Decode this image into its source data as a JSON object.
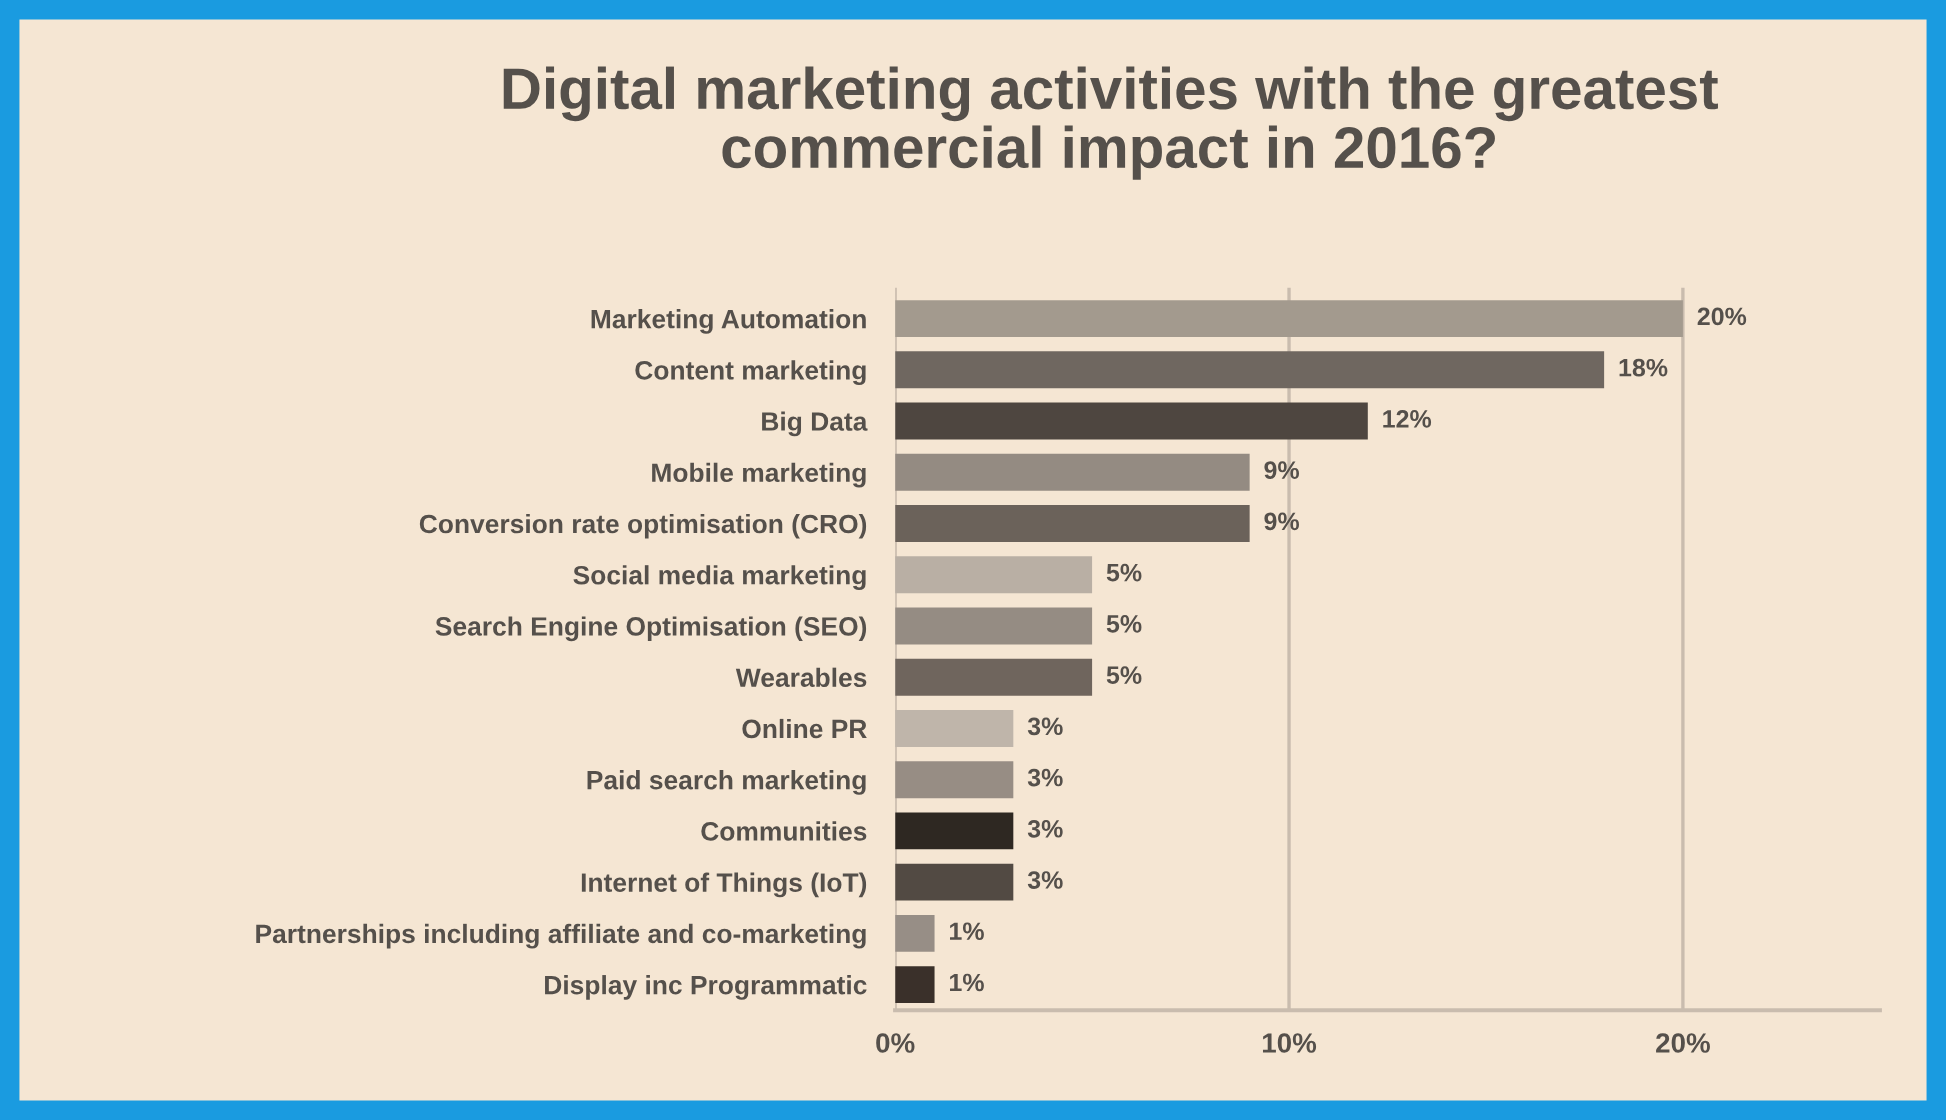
{
  "chart_data": {
    "type": "bar",
    "orientation": "horizontal",
    "title": "Digital marketing activities with the greatest\ncommercial impact in 2016?",
    "categories": [
      "Marketing Automation",
      "Content marketing",
      "Big Data",
      "Mobile marketing",
      "Conversion rate optimisation (CRO)",
      "Social media marketing",
      "Search Engine Optimisation (SEO)",
      "Wearables",
      "Online PR",
      "Paid search marketing",
      "Communities",
      "Internet of Things (IoT)",
      "Partnerships including affiliate and co-marketing",
      "Display inc Programmatic"
    ],
    "values": [
      20,
      18,
      12,
      9,
      9,
      5,
      5,
      5,
      3,
      3,
      3,
      3,
      1,
      1
    ],
    "value_labels": [
      "20%",
      "18%",
      "12%",
      "9%",
      "9%",
      "5%",
      "5%",
      "5%",
      "3%",
      "3%",
      "3%",
      "3%",
      "1%",
      "1%"
    ],
    "colors": [
      "#a39a8e",
      "#6f6760",
      "#4e4640",
      "#948b82",
      "#6b625a",
      "#b9afa4",
      "#958c83",
      "#6f655d",
      "#bfb5aa",
      "#978d84",
      "#2e2822",
      "#524a43",
      "#978e86",
      "#3a302a"
    ],
    "xlim": [
      0,
      25
    ],
    "xticks": [
      {
        "value": 0,
        "label": "0%"
      },
      {
        "value": 10,
        "label": "10%"
      },
      {
        "value": 20,
        "label": "20%"
      }
    ],
    "grid": "x",
    "legend": false
  }
}
